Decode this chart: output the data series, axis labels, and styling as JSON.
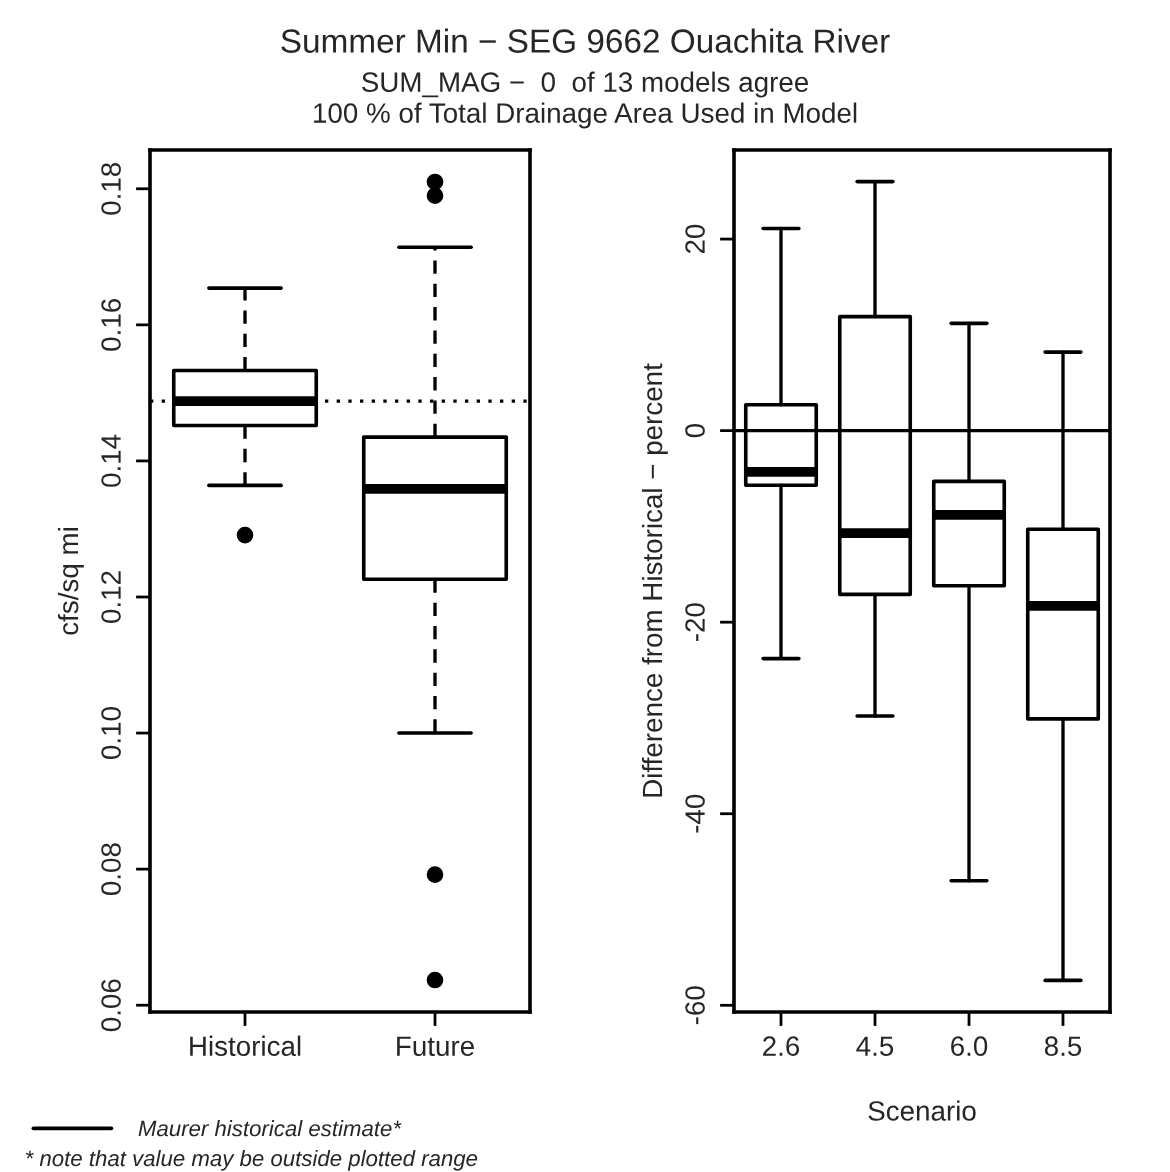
{
  "chart_data": [
    {
      "type": "box",
      "title": "Summer Min − SEG 9662 Ouachita River",
      "subtitle": "SUM_MAG −  0  of 13 models agree\n100 % of Total Drainage Area Used in Model",
      "ylabel": "cfs/sq mi",
      "categories": [
        "Historical",
        "Future"
      ],
      "boxes": [
        {
          "low": 0.1364,
          "q1": 0.1452,
          "median": 0.1488,
          "q3": 0.1533,
          "high": 0.1654,
          "outliers": [
            0.1291
          ]
        },
        {
          "low": 0.1,
          "q1": 0.1226,
          "median": 0.1359,
          "q3": 0.1435,
          "high": 0.1714,
          "outliers": [
            0.181,
            0.179,
            0.0792,
            0.0637
          ]
        }
      ],
      "ylim": [
        0.059,
        0.1857
      ],
      "yticks": [
        0.06,
        0.08,
        {
          "value": 0.1,
          "label": "0.10"
        },
        0.12,
        0.14,
        0.16,
        0.18
      ],
      "ref_lines": [
        {
          "axis": "y",
          "value": 0.1488,
          "label": "Maurer historical estimate*",
          "line_style": "dotted",
          "color": "#000000"
        }
      ],
      "annotations": [
        "* note that value may be outside plotted range"
      ],
      "line_style": "dashed",
      "grid": false,
      "legend": "bottom left"
    },
    {
      "type": "box",
      "ylabel": "Difference from Historical − percent",
      "xlabel": "Scenario",
      "categories": [
        "2.6",
        "4.5",
        "6.0",
        "8.5"
      ],
      "boxes": [
        {
          "low": -23.8,
          "q1": -5.7,
          "median": -4.3,
          "q3": 2.7,
          "high": 21.1
        },
        {
          "low": -29.8,
          "q1": -17.1,
          "median": -10.7,
          "q3": 11.9,
          "high": 26.0
        },
        {
          "low": -47.0,
          "q1": -16.2,
          "median": -8.8,
          "q3": -5.3,
          "high": 11.2
        },
        {
          "low": -57.4,
          "q1": -30.1,
          "median": -18.3,
          "q3": -10.3,
          "high": 8.2
        }
      ],
      "ylim": [
        -60.7,
        29.3
      ],
      "yticks": [
        -60,
        -40,
        -20,
        0,
        20
      ],
      "ref_lines": [
        {
          "axis": "y",
          "value": 0,
          "line_style": "solid",
          "color": "#000000"
        }
      ],
      "line_style": "solid",
      "grid": false
    }
  ]
}
